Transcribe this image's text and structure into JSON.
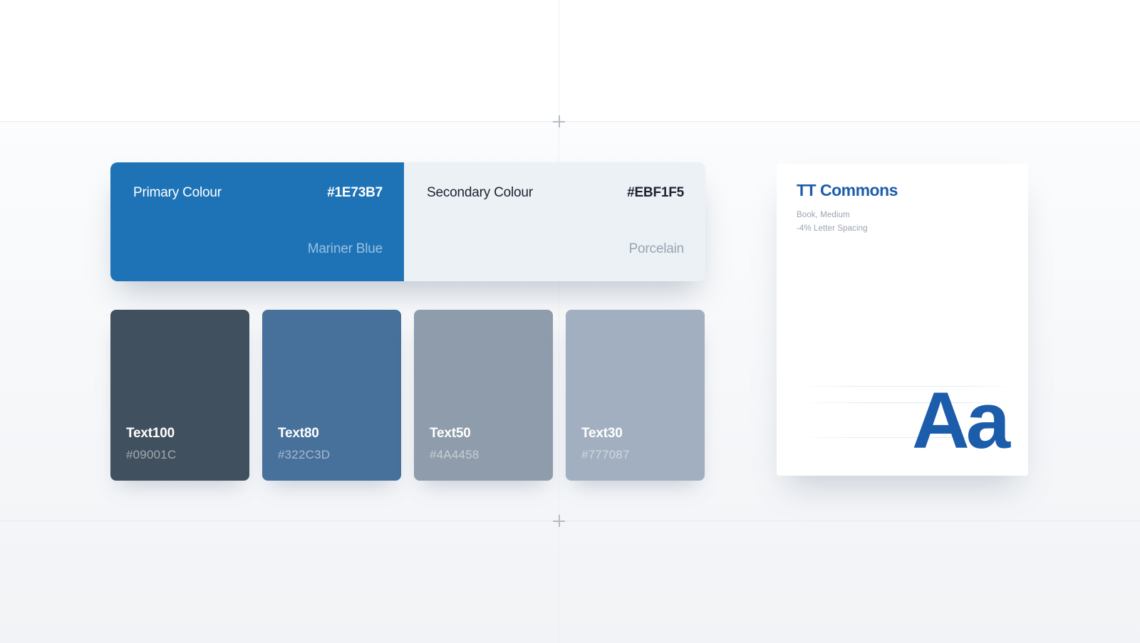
{
  "canvas": {
    "background_top": "#FFFFFF",
    "background_bottom": "#F1F3F6",
    "guide_color": "#E9EBEE"
  },
  "palette": {
    "primary": {
      "label": "Primary Colour",
      "hex": "#1E73B7",
      "name": "Mariner Blue"
    },
    "secondary": {
      "label": "Secondary Colour",
      "hex": "#EBF1F5",
      "name": "Porcelain"
    },
    "text_swatches": [
      {
        "label": "Text100",
        "hex": "#09001C",
        "fill": "#41505E"
      },
      {
        "label": "Text80",
        "hex": "#322C3D",
        "fill": "#47719B"
      },
      {
        "label": "Text50",
        "hex": "#4A4458",
        "fill": "#8E9CAB"
      },
      {
        "label": "Text30",
        "hex": "#777087",
        "fill": "#A1AFC0"
      }
    ]
  },
  "typography": {
    "font_name": "TT Commons",
    "style_line": "Book, Medium",
    "spacing_line": "-4% Letter Spacing",
    "specimen": "Aa",
    "accent": "#1C5DAB"
  }
}
